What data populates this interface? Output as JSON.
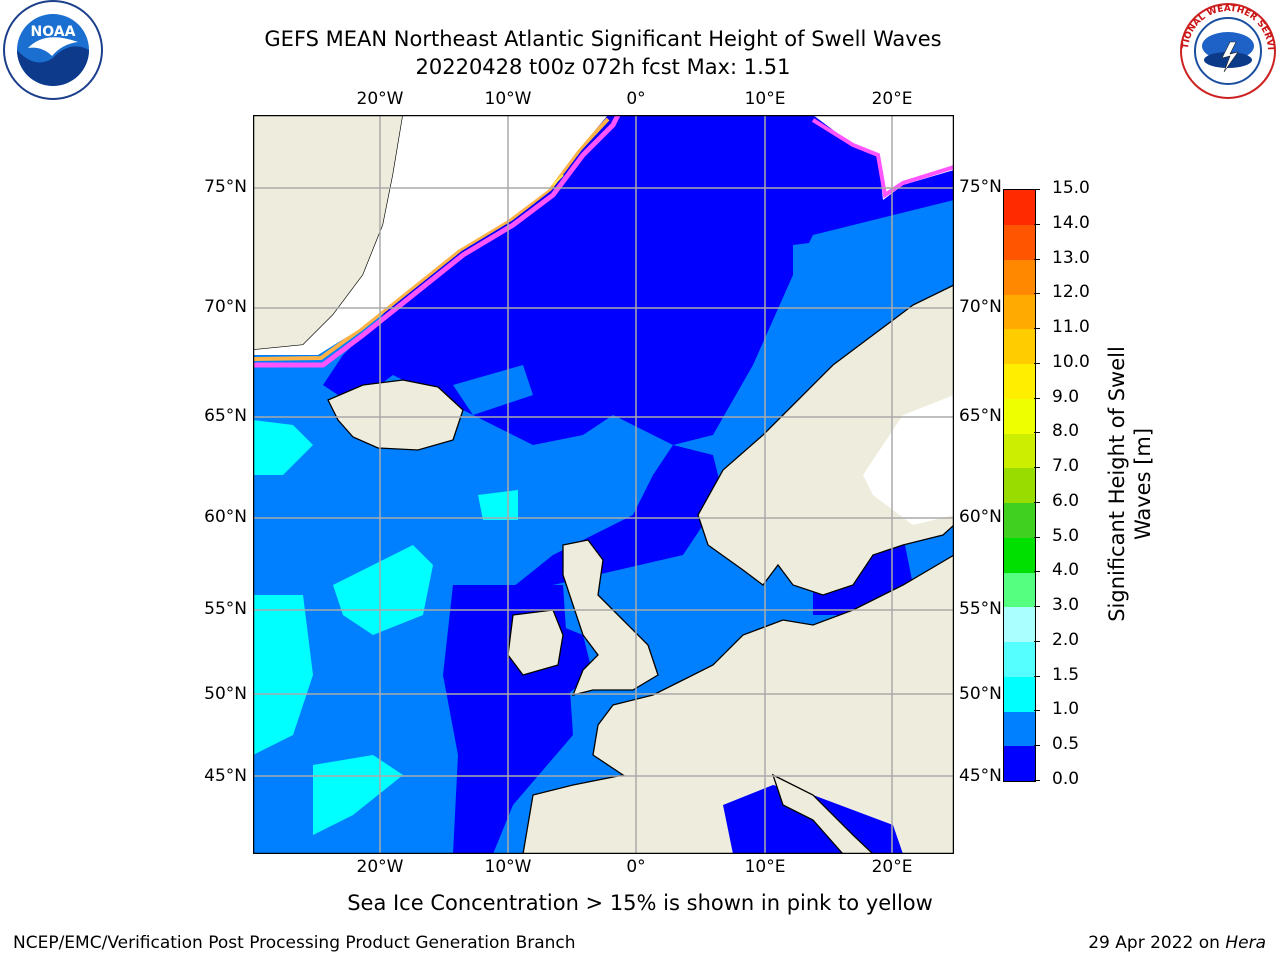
{
  "header": {
    "title_line1": "GEFS MEAN Northeast Atlantic Significant Height of Swell Waves",
    "title_line2": "20220428 t00z 072h fcst   Max: 1.51"
  },
  "logos": {
    "left": "NOAA",
    "right": "NATIONAL WEATHER SERVICE"
  },
  "map": {
    "lon_labels": [
      "20°W",
      "10°W",
      "0°",
      "10°E",
      "20°E"
    ],
    "lat_labels": [
      "75°N",
      "70°N",
      "65°N",
      "60°N",
      "55°N",
      "50°N",
      "45°N"
    ],
    "land_color": "#eeeddd",
    "ice_colors": [
      "#ff55ff",
      "#ffb347",
      "#ffe84a"
    ]
  },
  "colorbar": {
    "label_line1": "Significant Height of Swell",
    "label_line2": "Waves [m]",
    "ticks": [
      "0.0",
      "0.5",
      "1.0",
      "1.5",
      "2.0",
      "3.0",
      "4.0",
      "5.0",
      "6.0",
      "7.0",
      "8.0",
      "9.0",
      "10.0",
      "11.0",
      "12.0",
      "13.0",
      "14.0",
      "15.0"
    ],
    "colors": [
      "#0000ff",
      "#0080ff",
      "#00ffff",
      "#55ffff",
      "#aaffff",
      "#55ff80",
      "#00e000",
      "#40d020",
      "#99dd00",
      "#ccee00",
      "#eeff00",
      "#ffee00",
      "#ffcc00",
      "#ffaa00",
      "#ff8800",
      "#ff5500",
      "#ff2a00",
      "#ff0000"
    ]
  },
  "note": "Sea Ice Concentration > 15% is shown in pink to yellow",
  "footer": {
    "left": "NCEP/EMC/Verification Post Processing Product Generation Branch",
    "right_prefix": "29 Apr 2022 on ",
    "right_emph": "Hera"
  }
}
